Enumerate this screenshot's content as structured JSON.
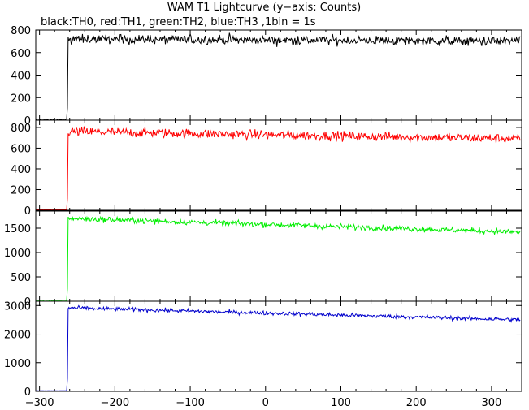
{
  "title": "WAM T1 Lightcurve (y−axis: Counts)",
  "subtitle": "black:TH0, red:TH1, green:TH2, blue:TH3 ,1bin = 1s",
  "chart_data": {
    "type": "line",
    "x_axis": {
      "range": [
        -305,
        340
      ],
      "ticks": [
        -300,
        -200,
        -100,
        0,
        100,
        200,
        300
      ],
      "tick_labels": [
        "−300",
        "−200",
        "−100",
        "0",
        "100",
        "200",
        "300"
      ]
    },
    "x_step": 1,
    "panels": [
      {
        "name": "TH0",
        "color": "#000000",
        "ylim": [
          0,
          800
        ],
        "yticks": [
          0,
          200,
          400,
          600,
          800
        ],
        "ytick_labels": [
          "0",
          "200",
          "400",
          "600",
          "800"
        ],
        "x_start": -305,
        "x_onset": -263,
        "pre_level": 8,
        "post_level_start": 720,
        "post_level_end": 700,
        "noise_amplitude": 30,
        "end_x": 338
      },
      {
        "name": "TH1",
        "color": "#ff0000",
        "ylim": [
          0,
          870
        ],
        "yticks": [
          0,
          200,
          400,
          600,
          800
        ],
        "ytick_labels": [
          "0",
          "200",
          "400",
          "600",
          "800"
        ],
        "x_start": -305,
        "x_onset": -263,
        "pre_level": 5,
        "post_level_start": 760,
        "post_level_end": 690,
        "noise_amplitude": 32,
        "end_x": 338
      },
      {
        "name": "TH2",
        "color": "#00ee00",
        "ylim": [
          0,
          1850
        ],
        "yticks": [
          0,
          500,
          1000,
          1500
        ],
        "ytick_labels": [
          "0",
          "500",
          "1000",
          "1500"
        ],
        "x_start": -305,
        "x_onset": -263,
        "pre_level": 20,
        "post_level_start": 1700,
        "post_level_end": 1420,
        "noise_amplitude": 40,
        "end_x": 338
      },
      {
        "name": "TH3",
        "color": "#0000cc",
        "ylim": [
          0,
          3150
        ],
        "yticks": [
          0,
          1000,
          2000,
          3000
        ],
        "ytick_labels": [
          "0",
          "1000",
          "2000",
          "3000"
        ],
        "x_start": -305,
        "x_onset": -263,
        "pre_level": 20,
        "post_level_start": 2920,
        "post_level_end": 2500,
        "noise_amplitude": 50,
        "end_x": 338
      }
    ]
  }
}
